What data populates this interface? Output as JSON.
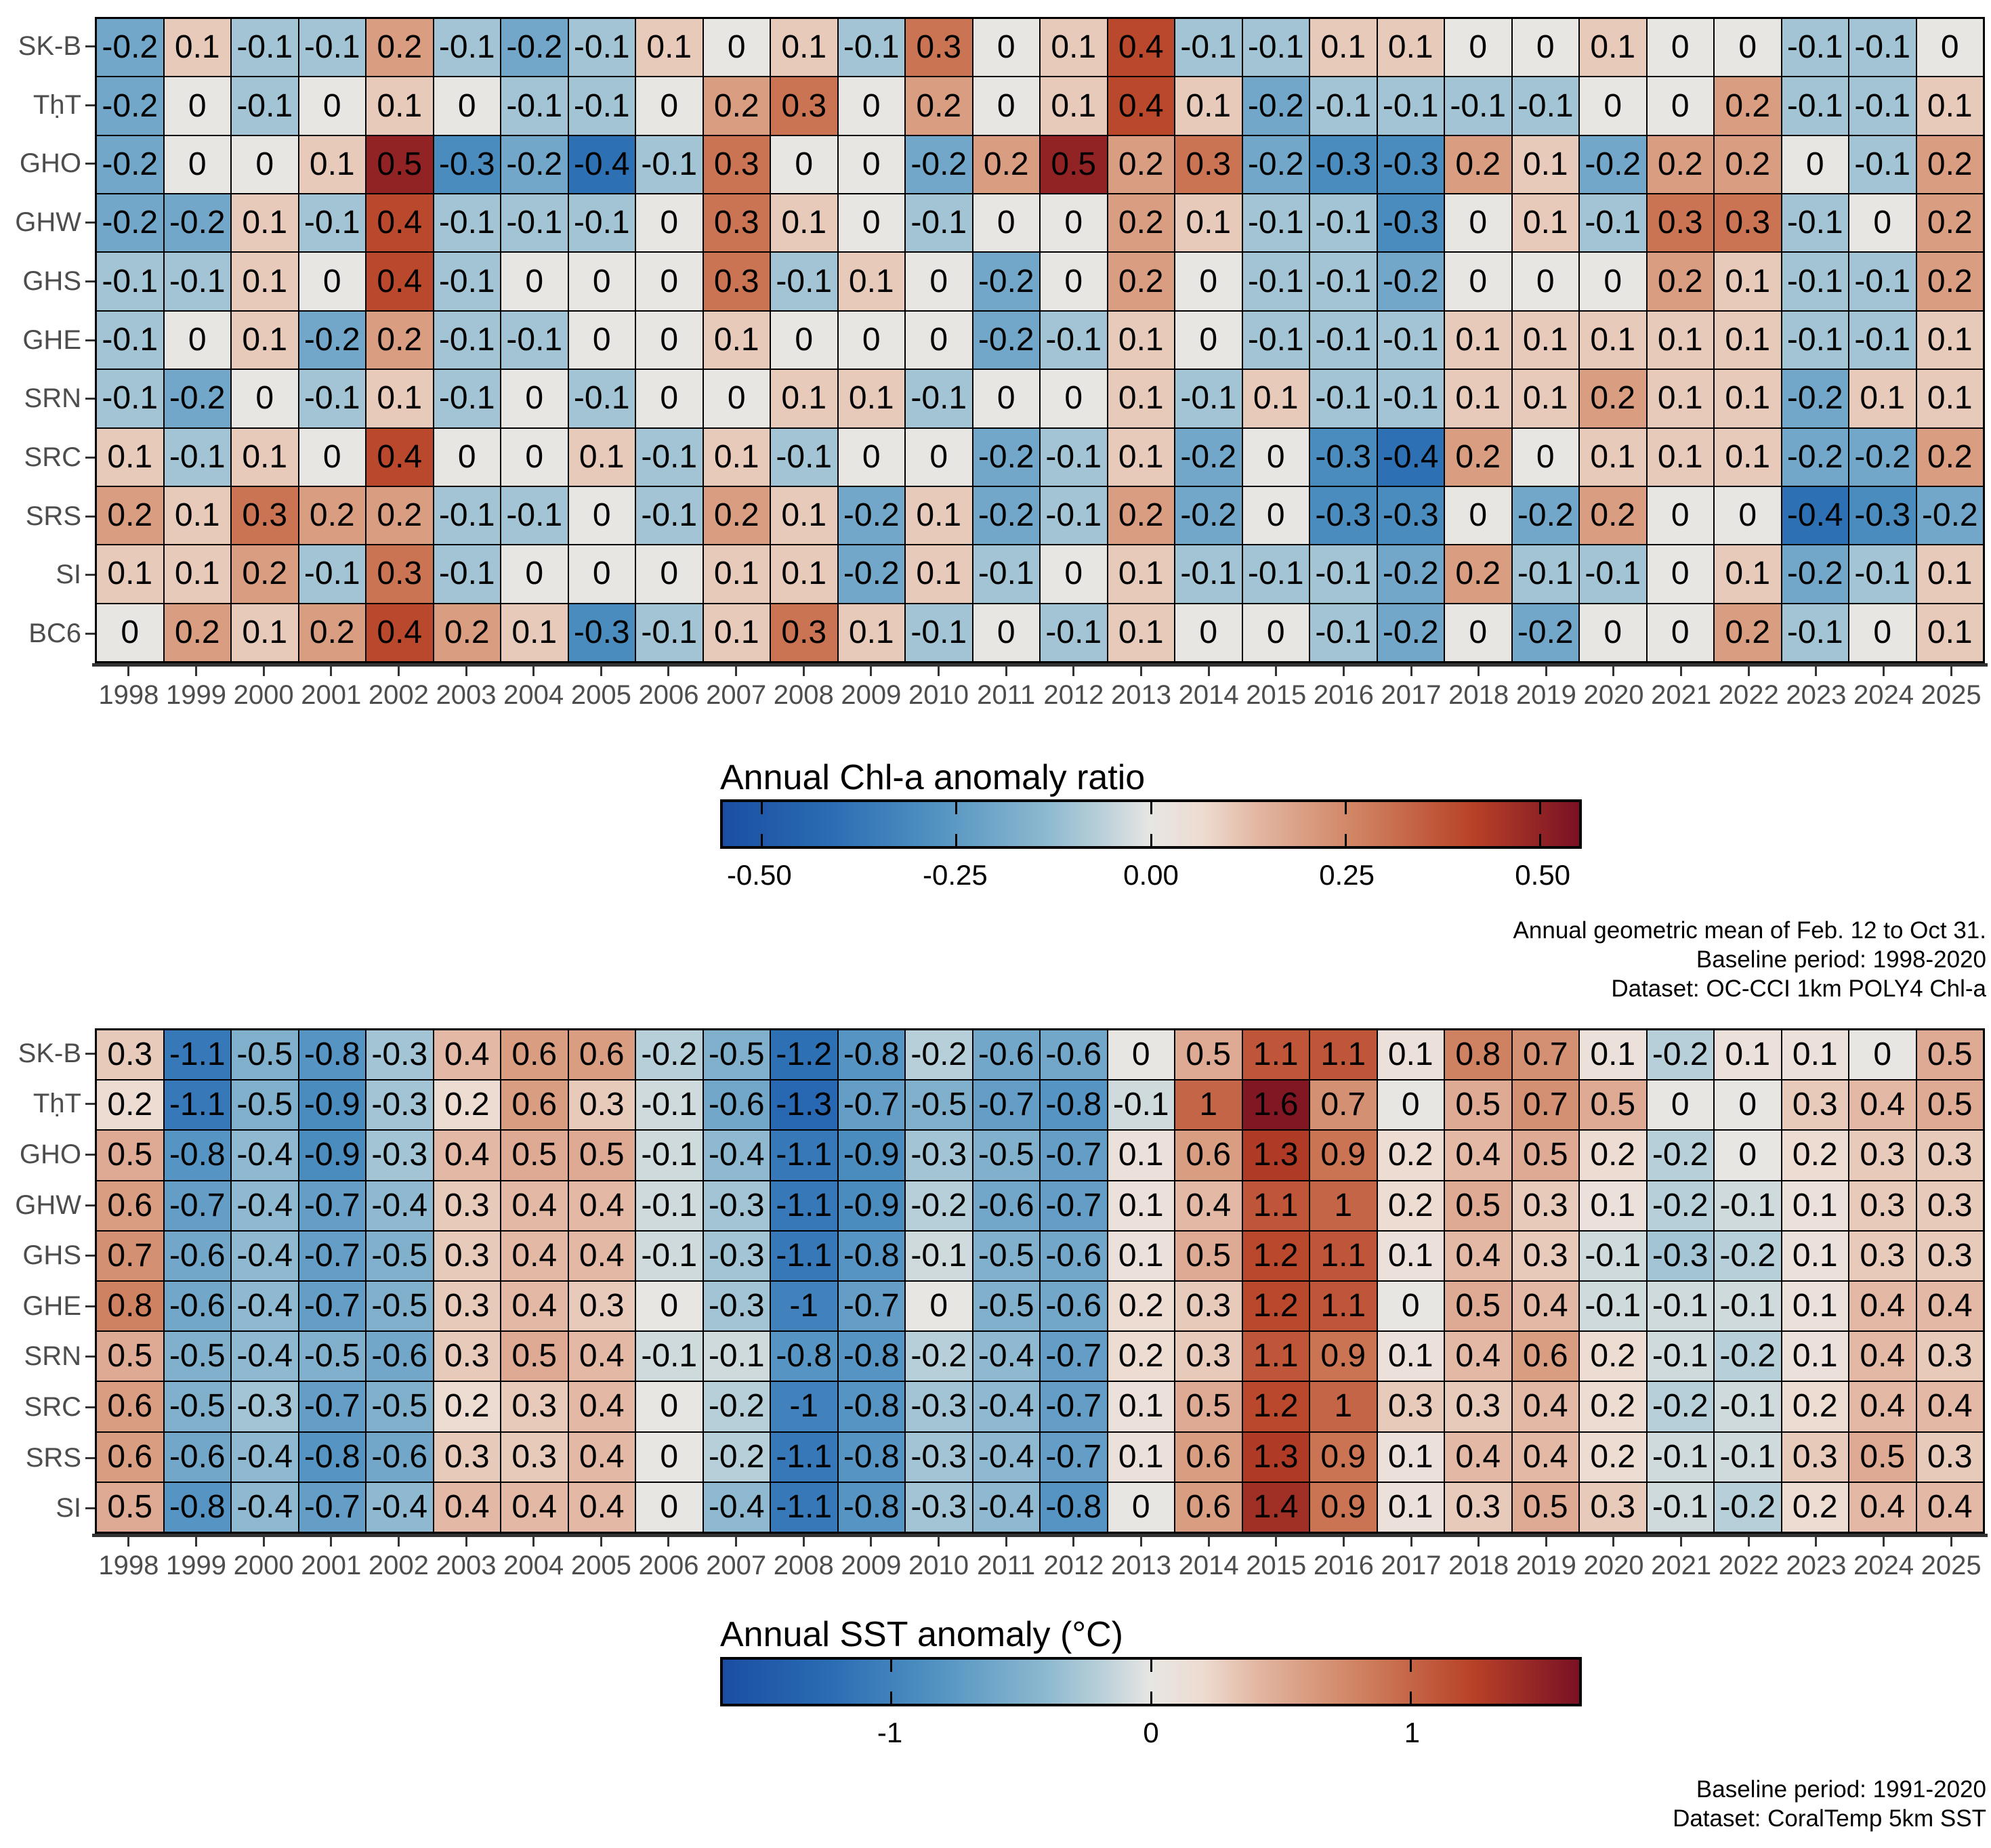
{
  "page": {
    "background": "#ffffff"
  },
  "colors": {
    "cell_text": "#000000",
    "axis_label": "#4d4d4d",
    "axis_line": "#333333",
    "cell_border": "#000000",
    "colorbar_border": "#000000"
  },
  "colormap": {
    "description": "diverging blue-white-red fill scale shared by both heatmaps",
    "stops": [
      {
        "t": 0.0,
        "color": "#1b4ea3"
      },
      {
        "t": 0.125,
        "color": "#2a6cb3"
      },
      {
        "t": 0.25,
        "color": "#5293c2"
      },
      {
        "t": 0.375,
        "color": "#8cb8cf"
      },
      {
        "t": 0.44,
        "color": "#b7cfd8"
      },
      {
        "t": 0.5,
        "color": "#e8e6e3"
      },
      {
        "t": 0.56,
        "color": "#eddcd1"
      },
      {
        "t": 0.625,
        "color": "#e2b6a1"
      },
      {
        "t": 0.75,
        "color": "#ce7f5d"
      },
      {
        "t": 0.875,
        "color": "#b84228"
      },
      {
        "t": 1.0,
        "color": "#7a1124"
      }
    ]
  },
  "chart_data": [
    {
      "type": "heatmap",
      "legend_position": "bottom",
      "colorbar": {
        "title": "Annual Chl-a anomaly ratio",
        "ticks": [
          {
            "value": -0.5,
            "label": "-0.50"
          },
          {
            "value": -0.25,
            "label": "-0.25"
          },
          {
            "value": 0.0,
            "label": "0.00"
          },
          {
            "value": 0.25,
            "label": "0.25"
          },
          {
            "value": 0.5,
            "label": "0.50"
          }
        ]
      },
      "color_domain": [
        -0.55,
        0.55
      ],
      "rows": [
        "SK-B",
        "TḥT",
        "GHO",
        "GHW",
        "GHS",
        "GHE",
        "SRN",
        "SRC",
        "SRS",
        "SI",
        "BC6"
      ],
      "columns": [
        "1998",
        "1999",
        "2000",
        "2001",
        "2002",
        "2003",
        "2004",
        "2005",
        "2006",
        "2007",
        "2008",
        "2009",
        "2010",
        "2011",
        "2012",
        "2013",
        "2014",
        "2015",
        "2016",
        "2017",
        "2018",
        "2019",
        "2020",
        "2021",
        "2022",
        "2023",
        "2024",
        "2025"
      ],
      "values": [
        [
          -0.2,
          0.1,
          -0.1,
          -0.1,
          0.2,
          -0.1,
          -0.2,
          -0.1,
          0.1,
          0,
          0.1,
          -0.1,
          0.3,
          0,
          0.1,
          0.4,
          -0.1,
          -0.1,
          0.1,
          0.1,
          0,
          0,
          0.1,
          0,
          0,
          -0.1,
          -0.1,
          0
        ],
        [
          -0.2,
          0,
          -0.1,
          0,
          0.1,
          0,
          -0.1,
          -0.1,
          0,
          0.2,
          0.3,
          0,
          0.2,
          0,
          0.1,
          0.4,
          0.1,
          -0.2,
          -0.1,
          -0.1,
          -0.1,
          -0.1,
          0,
          0,
          0.2,
          -0.1,
          -0.1,
          0.1
        ],
        [
          -0.2,
          0,
          0,
          0.1,
          0.5,
          -0.3,
          -0.2,
          -0.4,
          -0.1,
          0.3,
          0,
          0,
          -0.2,
          0.2,
          0.5,
          0.2,
          0.3,
          -0.2,
          -0.3,
          -0.3,
          0.2,
          0.1,
          -0.2,
          0.2,
          0.2,
          0,
          -0.1,
          0.2
        ],
        [
          -0.2,
          -0.2,
          0.1,
          -0.1,
          0.4,
          -0.1,
          -0.1,
          -0.1,
          0,
          0.3,
          0.1,
          0,
          -0.1,
          0,
          0,
          0.2,
          0.1,
          -0.1,
          -0.1,
          -0.3,
          0,
          0.1,
          -0.1,
          0.3,
          0.3,
          -0.1,
          0,
          0.2
        ],
        [
          -0.1,
          -0.1,
          0.1,
          0,
          0.4,
          -0.1,
          0,
          0,
          0,
          0.3,
          -0.1,
          0.1,
          0,
          -0.2,
          0,
          0.2,
          0,
          -0.1,
          -0.1,
          -0.2,
          0,
          0,
          0,
          0.2,
          0.1,
          -0.1,
          -0.1,
          0.2
        ],
        [
          -0.1,
          0,
          0.1,
          -0.2,
          0.2,
          -0.1,
          -0.1,
          0,
          0,
          0.1,
          0,
          0,
          0,
          -0.2,
          -0.1,
          0.1,
          0,
          -0.1,
          -0.1,
          -0.1,
          0.1,
          0.1,
          0.1,
          0.1,
          0.1,
          -0.1,
          -0.1,
          0.1
        ],
        [
          -0.1,
          -0.2,
          0,
          -0.1,
          0.1,
          -0.1,
          0,
          -0.1,
          0,
          0,
          0.1,
          0.1,
          -0.1,
          0,
          0,
          0.1,
          -0.1,
          0.1,
          -0.1,
          -0.1,
          0.1,
          0.1,
          0.2,
          0.1,
          0.1,
          -0.2,
          0.1,
          0.1
        ],
        [
          0.1,
          -0.1,
          0.1,
          0,
          0.4,
          0,
          0,
          0.1,
          -0.1,
          0.1,
          -0.1,
          0,
          0,
          -0.2,
          -0.1,
          0.1,
          -0.2,
          0,
          -0.3,
          -0.4,
          0.2,
          0,
          0.1,
          0.1,
          0.1,
          -0.2,
          -0.2,
          0.2
        ],
        [
          0.2,
          0.1,
          0.3,
          0.2,
          0.2,
          -0.1,
          -0.1,
          0,
          -0.1,
          0.2,
          0.1,
          -0.2,
          0.1,
          -0.2,
          -0.1,
          0.2,
          -0.2,
          0,
          -0.3,
          -0.3,
          0,
          -0.2,
          0.2,
          0,
          0,
          -0.4,
          -0.3,
          -0.2
        ],
        [
          0.1,
          0.1,
          0.2,
          -0.1,
          0.3,
          -0.1,
          0,
          0,
          0,
          0.1,
          0.1,
          -0.2,
          0.1,
          -0.1,
          0,
          0.1,
          -0.1,
          -0.1,
          -0.1,
          -0.2,
          0.2,
          -0.1,
          -0.1,
          0,
          0.1,
          -0.2,
          -0.1,
          0.1
        ],
        [
          0,
          0.2,
          0.1,
          0.2,
          0.4,
          0.2,
          0.1,
          -0.3,
          -0.1,
          0.1,
          0.3,
          0.1,
          -0.1,
          0,
          -0.1,
          0.1,
          0,
          0,
          -0.1,
          -0.2,
          0,
          -0.2,
          0,
          0,
          0.2,
          -0.1,
          0,
          0.1
        ]
      ],
      "annotations": [
        "Annual geometric mean of Feb. 12 to Oct 31.",
        "Baseline period: 1998-2020",
        "Dataset: OC-CCI 1km POLY4 Chl-a"
      ]
    },
    {
      "type": "heatmap",
      "legend_position": "bottom",
      "colorbar": {
        "title": "Annual SST anomaly (°C)",
        "ticks": [
          {
            "value": -1,
            "label": "-1"
          },
          {
            "value": 0,
            "label": "0"
          },
          {
            "value": 1,
            "label": "1"
          }
        ]
      },
      "color_domain": [
        -1.65,
        1.65
      ],
      "rows": [
        "SK-B",
        "TḥT",
        "GHO",
        "GHW",
        "GHS",
        "GHE",
        "SRN",
        "SRC",
        "SRS",
        "SI"
      ],
      "columns": [
        "1998",
        "1999",
        "2000",
        "2001",
        "2002",
        "2003",
        "2004",
        "2005",
        "2006",
        "2007",
        "2008",
        "2009",
        "2010",
        "2011",
        "2012",
        "2013",
        "2014",
        "2015",
        "2016",
        "2017",
        "2018",
        "2019",
        "2020",
        "2021",
        "2022",
        "2023",
        "2024",
        "2025"
      ],
      "values": [
        [
          0.3,
          -1.1,
          -0.5,
          -0.8,
          -0.3,
          0.4,
          0.6,
          0.6,
          -0.2,
          -0.5,
          -1.2,
          -0.8,
          -0.2,
          -0.6,
          -0.6,
          0,
          0.5,
          1.1,
          1.1,
          0.1,
          0.8,
          0.7,
          0.1,
          -0.2,
          0.1,
          0.1,
          0,
          0.5
        ],
        [
          0.2,
          -1.1,
          -0.5,
          -0.9,
          -0.3,
          0.2,
          0.6,
          0.3,
          -0.1,
          -0.6,
          -1.3,
          -0.7,
          -0.5,
          -0.7,
          -0.8,
          -0.1,
          1,
          1.6,
          0.7,
          0,
          0.5,
          0.7,
          0.5,
          0,
          0,
          0.3,
          0.4,
          0.5
        ],
        [
          0.5,
          -0.8,
          -0.4,
          -0.9,
          -0.3,
          0.4,
          0.5,
          0.5,
          -0.1,
          -0.4,
          -1.1,
          -0.9,
          -0.3,
          -0.5,
          -0.7,
          0.1,
          0.6,
          1.3,
          0.9,
          0.2,
          0.4,
          0.5,
          0.2,
          -0.2,
          0,
          0.2,
          0.3,
          0.3
        ],
        [
          0.6,
          -0.7,
          -0.4,
          -0.7,
          -0.4,
          0.3,
          0.4,
          0.4,
          -0.1,
          -0.3,
          -1.1,
          -0.9,
          -0.2,
          -0.6,
          -0.7,
          0.1,
          0.4,
          1.1,
          1,
          0.2,
          0.5,
          0.3,
          0.1,
          -0.2,
          -0.1,
          0.1,
          0.3,
          0.3
        ],
        [
          0.7,
          -0.6,
          -0.4,
          -0.7,
          -0.5,
          0.3,
          0.4,
          0.4,
          -0.1,
          -0.3,
          -1.1,
          -0.8,
          -0.1,
          -0.5,
          -0.6,
          0.1,
          0.5,
          1.2,
          1.1,
          0.1,
          0.4,
          0.3,
          -0.1,
          -0.3,
          -0.2,
          0.1,
          0.3,
          0.3
        ],
        [
          0.8,
          -0.6,
          -0.4,
          -0.7,
          -0.5,
          0.3,
          0.4,
          0.3,
          0,
          -0.3,
          -1,
          -0.7,
          0,
          -0.5,
          -0.6,
          0.2,
          0.3,
          1.2,
          1.1,
          0,
          0.5,
          0.4,
          -0.1,
          -0.1,
          -0.1,
          0.1,
          0.4,
          0.4
        ],
        [
          0.5,
          -0.5,
          -0.4,
          -0.5,
          -0.6,
          0.3,
          0.5,
          0.4,
          -0.1,
          -0.1,
          -0.8,
          -0.8,
          -0.2,
          -0.4,
          -0.7,
          0.2,
          0.3,
          1.1,
          0.9,
          0.1,
          0.4,
          0.6,
          0.2,
          -0.1,
          -0.2,
          0.1,
          0.4,
          0.3
        ],
        [
          0.6,
          -0.5,
          -0.3,
          -0.7,
          -0.5,
          0.2,
          0.3,
          0.4,
          0,
          -0.2,
          -1,
          -0.8,
          -0.3,
          -0.4,
          -0.7,
          0.1,
          0.5,
          1.2,
          1,
          0.3,
          0.3,
          0.4,
          0.2,
          -0.2,
          -0.1,
          0.2,
          0.4,
          0.4
        ],
        [
          0.6,
          -0.6,
          -0.4,
          -0.8,
          -0.6,
          0.3,
          0.3,
          0.4,
          0,
          -0.2,
          -1.1,
          -0.8,
          -0.3,
          -0.4,
          -0.7,
          0.1,
          0.6,
          1.3,
          0.9,
          0.1,
          0.4,
          0.4,
          0.2,
          -0.1,
          -0.1,
          0.3,
          0.5,
          0.3
        ],
        [
          0.5,
          -0.8,
          -0.4,
          -0.7,
          -0.4,
          0.4,
          0.4,
          0.4,
          0,
          -0.4,
          -1.1,
          -0.8,
          -0.3,
          -0.4,
          -0.8,
          0,
          0.6,
          1.4,
          0.9,
          0.1,
          0.3,
          0.5,
          0.3,
          -0.1,
          -0.2,
          0.2,
          0.4,
          0.4
        ]
      ],
      "annotations": [
        "Baseline period: 1991-2020",
        "Dataset: CoralTemp 5km SST"
      ]
    }
  ]
}
